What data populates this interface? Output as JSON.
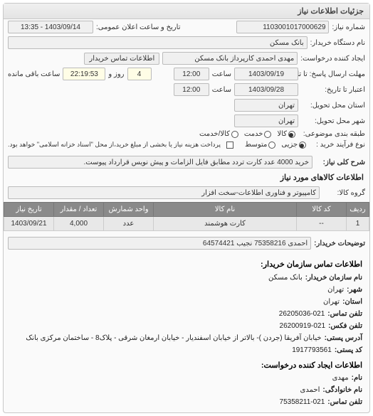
{
  "panel": {
    "title": "جزئیات اطلاعات نیاز"
  },
  "fields": {
    "request_no_label": "شماره نیاز:",
    "request_no": "1103001017000629",
    "announce_label": "تاریخ و ساعت اعلان عمومی:",
    "announce_value": "1403/09/14 - 13:35",
    "org_label": "نام دستگاه خریدار:",
    "org_value": "بانک مسکن",
    "creator_label": "ایجاد کننده درخواست:",
    "creator_value": "مهدی احمدی کارپرداز بانک مسکن",
    "contact_info_label": "اطلاعات تماس خریدار",
    "deadline_label": "مهلت ارسال پاسخ: تا تاریخ:",
    "deadline_date": "1403/09/19",
    "time_label": "ساعت",
    "deadline_time": "12:00",
    "days_label": "روز و",
    "days_value": "4",
    "remain_label": "ساعت باقی مانده",
    "remain_time": "22:19:53",
    "valid_label": "اعتبار تا تاریخ:",
    "valid_date": "1403/09/28",
    "valid_time": "12:00",
    "deliver_province_label": "استان محل تحویل:",
    "deliver_province": "تهران",
    "deliver_city_label": "شهر محل تحویل:",
    "deliver_city": "تهران",
    "category_label": "طبقه بندی موضوعی:",
    "cat_goods": "کالا",
    "cat_service": "خدمت",
    "cat_goods_service": "کالا/خدمت",
    "process_label": "نوع فرآیند خرید :",
    "proc_minor": "جزیی",
    "proc_medium": "متوسط",
    "note": "پرداخت هزینه نیاز یا بخشی از مبلغ خرید،از محل \"اسناد خزانه اسلامی\" خواهد بود.",
    "desc_label": "شرح کلی نیاز:",
    "desc_value": "خرید 4000 عدد کارت تردد مطابق فایل الزامات و پیش نویس قرارداد پیوست.",
    "items_title": "اطلاعات کالاهای مورد نیاز",
    "group_label": "گروه کالا:",
    "group_value": "کامپیوتر و فناوری اطلاعات-سخت افزار"
  },
  "table": {
    "headers": {
      "row": "ردیف",
      "code": "کد کالا",
      "name": "نام کالا",
      "unit": "واحد شمارش",
      "qty": "تعداد / مقدار",
      "date": "تاریخ نیاز"
    },
    "rows": [
      {
        "row": "1",
        "code": "--",
        "name": "کارت هوشمند",
        "unit": "عدد",
        "qty": "4,000",
        "date": "1403/09/21"
      }
    ]
  },
  "buyer_notes": {
    "label": "توضیحات خریدار:",
    "value": "احمدی 75358216 نجیب 64574421"
  },
  "contact": {
    "heading1": "اطلاعات تماس سازمان خریدار:",
    "org_name_k": "نام سازمان خریدار:",
    "org_name_v": "بانک مسکن",
    "city_k": "شهر:",
    "city_v": "تهران",
    "province_k": "استان:",
    "province_v": "تهران",
    "phone_k": "تلفن تماس:",
    "phone_v": "26205036-021",
    "fax_k": "تلفن فکس:",
    "fax_v": "26200919-021",
    "address_k": "آدرس پستی:",
    "address_v": "خیابان آفریقا (جردن )- بالاتر از خیابان اسفندیار - خیابان ارمغان شرقی - پلاک8 - ساختمان مرکزی بانک",
    "postal_k": "کد پستی:",
    "postal_v": "1917793561",
    "heading2": "اطلاعات ایجاد کننده درخواست:",
    "fname_k": "نام:",
    "fname_v": "مهدی",
    "lname_k": "نام خانوادگی:",
    "lname_v": "احمدی",
    "cphone_k": "تلفن تماس:",
    "cphone_v": "75358211-021"
  }
}
